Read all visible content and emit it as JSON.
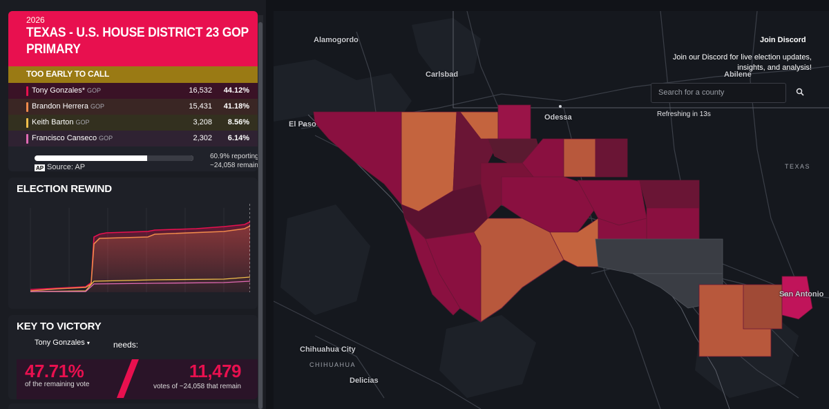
{
  "race": {
    "year": "2026",
    "title": "TEXAS - U.S. HOUSE DISTRICT 23 GOP PRIMARY",
    "call_status": "TOO EARLY TO CALL",
    "candidates": [
      {
        "name": "Tony Gonzales*",
        "party": "GOP",
        "votes": "16,532",
        "pct": "44.12%",
        "color": "#e8104f",
        "row_bg": "#3a1226"
      },
      {
        "name": "Brandon Herrera",
        "party": "GOP",
        "votes": "15,431",
        "pct": "41.18%",
        "color": "#f08a4b",
        "row_bg": "#3a2624"
      },
      {
        "name": "Keith Barton",
        "party": "GOP",
        "votes": "3,208",
        "pct": "8.56%",
        "color": "#f2c04b",
        "row_bg": "#33301f"
      },
      {
        "name": "Francisco Canseco",
        "party": "GOP",
        "votes": "2,302",
        "pct": "6.14%",
        "color": "#e06ab4",
        "row_bg": "#2f2232"
      }
    ],
    "reporting_pct": 60.9,
    "reporting_text": "60.9% reporting",
    "remain_text": "~24,058 remain",
    "ap_logo": "AP",
    "source": "Source: AP"
  },
  "rewind": {
    "title": "ELECTION REWIND"
  },
  "victory": {
    "title": "KEY TO VICTORY",
    "candidate": "Tony Gonzales",
    "needs": "needs:",
    "pct": "47.71%",
    "pct_sub": "of the remaining vote",
    "votes": "11,479",
    "votes_sub": "votes of ~24,058 that remain"
  },
  "map": {
    "labels": [
      {
        "text": "Alamogordo",
        "key": "alamogordo"
      },
      {
        "text": "Carlsbad",
        "key": "carlsbad"
      },
      {
        "text": "El Paso",
        "key": "el-paso"
      },
      {
        "text": "Odessa",
        "key": "odessa"
      },
      {
        "text": "Abilene",
        "key": "abilene"
      },
      {
        "text": "San Antonio",
        "key": "san-antonio"
      },
      {
        "text": "Chihuahua City",
        "key": "chihuahua-city"
      },
      {
        "text": "Delicias",
        "key": "delicias"
      }
    ],
    "states": [
      {
        "text": "TEXAS",
        "key": "texas"
      },
      {
        "text": "CHIHUAHUA",
        "key": "chihuahua"
      }
    ],
    "colors": {
      "gonzales": "#8a1040",
      "gonzales_dark": "#5a1230",
      "herrera": "#b8583c",
      "herrera_light": "#c4643e",
      "none": "#3a3d44"
    }
  },
  "discord": {
    "title": "Join Discord",
    "text": "Join our Discord for live election updates, insights, and analysis!"
  },
  "search": {
    "placeholder": "Search for a county",
    "icon": "search-icon"
  },
  "refresh": "Refreshing in 13s"
}
